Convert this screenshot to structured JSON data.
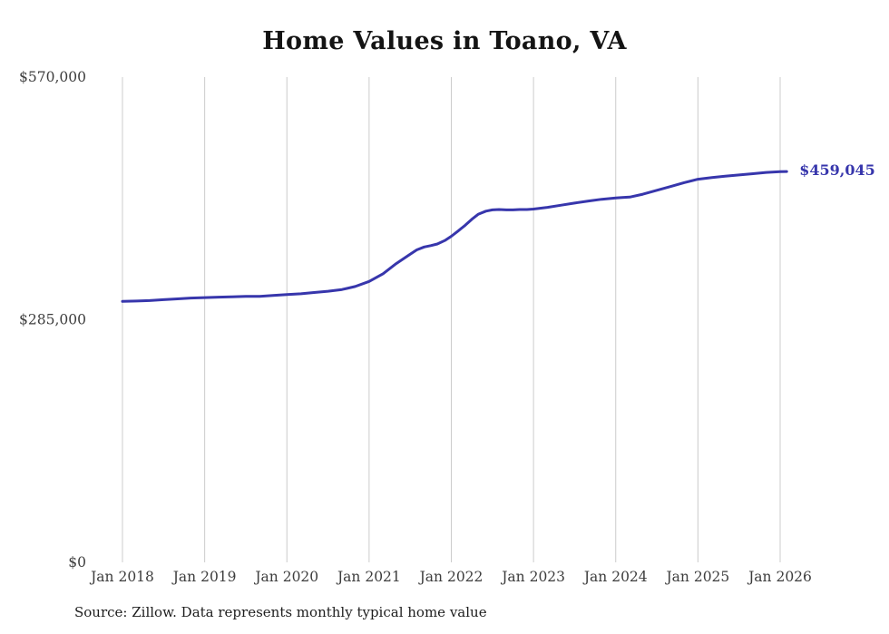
{
  "chart_data": {
    "type": "line",
    "title": "Home Values in Toano, VA",
    "source": "Source: Zillow. Data represents monthly typical home value",
    "xlabel": "",
    "ylabel": "",
    "x_ticks": [
      2018,
      2019,
      2020,
      2021,
      2022,
      2023,
      2024,
      2025,
      2026
    ],
    "x_tick_labels": [
      "Jan 2018",
      "Jan 2019",
      "Jan 2020",
      "Jan 2021",
      "Jan 2022",
      "Jan 2023",
      "Jan 2024",
      "Jan 2025",
      "Jan 2026"
    ],
    "y_ticks": [
      0,
      285000,
      570000
    ],
    "y_tick_labels": [
      "$0",
      "$285,000",
      "$570,000"
    ],
    "ylim": [
      0,
      570000
    ],
    "grid": "vertical-only",
    "legend": "none",
    "colors": {
      "line": "#3736ac",
      "grid": "#cccccc",
      "tick_text": "#3d3d3d",
      "annotation": "#3736ac",
      "background": "#ffffff"
    },
    "end_annotation": {
      "text": "$459,045",
      "x": 2026.08,
      "value": 459045
    },
    "series": [
      {
        "name": "Monthly typical home value",
        "color": "#3736ac",
        "points": [
          [
            2018.0,
            306500
          ],
          [
            2018.17,
            307000
          ],
          [
            2018.33,
            307500
          ],
          [
            2018.5,
            308500
          ],
          [
            2018.67,
            309500
          ],
          [
            2018.83,
            310500
          ],
          [
            2019.0,
            311000
          ],
          [
            2019.17,
            311500
          ],
          [
            2019.33,
            312000
          ],
          [
            2019.5,
            312500
          ],
          [
            2019.67,
            312500
          ],
          [
            2019.83,
            313500
          ],
          [
            2020.0,
            314500
          ],
          [
            2020.17,
            315500
          ],
          [
            2020.33,
            317000
          ],
          [
            2020.5,
            318500
          ],
          [
            2020.67,
            320500
          ],
          [
            2020.83,
            324000
          ],
          [
            2021.0,
            330000
          ],
          [
            2021.17,
            339000
          ],
          [
            2021.33,
            351000
          ],
          [
            2021.5,
            362000
          ],
          [
            2021.58,
            367000
          ],
          [
            2021.67,
            370500
          ],
          [
            2021.75,
            372000
          ],
          [
            2021.83,
            374000
          ],
          [
            2021.92,
            378000
          ],
          [
            2022.0,
            383000
          ],
          [
            2022.08,
            389000
          ],
          [
            2022.17,
            396000
          ],
          [
            2022.25,
            403000
          ],
          [
            2022.33,
            409000
          ],
          [
            2022.42,
            412500
          ],
          [
            2022.5,
            414000
          ],
          [
            2022.58,
            414500
          ],
          [
            2022.67,
            414000
          ],
          [
            2022.75,
            414000
          ],
          [
            2022.83,
            414500
          ],
          [
            2022.92,
            414500
          ],
          [
            2023.0,
            415000
          ],
          [
            2023.17,
            417000
          ],
          [
            2023.33,
            419500
          ],
          [
            2023.5,
            422000
          ],
          [
            2023.67,
            424500
          ],
          [
            2023.83,
            426500
          ],
          [
            2024.0,
            428000
          ],
          [
            2024.08,
            428500
          ],
          [
            2024.17,
            429000
          ],
          [
            2024.33,
            432500
          ],
          [
            2024.5,
            437000
          ],
          [
            2024.67,
            441500
          ],
          [
            2024.83,
            446000
          ],
          [
            2025.0,
            450000
          ],
          [
            2025.17,
            452000
          ],
          [
            2025.33,
            453500
          ],
          [
            2025.5,
            455000
          ],
          [
            2025.67,
            456500
          ],
          [
            2025.83,
            458000
          ],
          [
            2026.0,
            459000
          ],
          [
            2026.08,
            459045
          ]
        ]
      }
    ]
  }
}
